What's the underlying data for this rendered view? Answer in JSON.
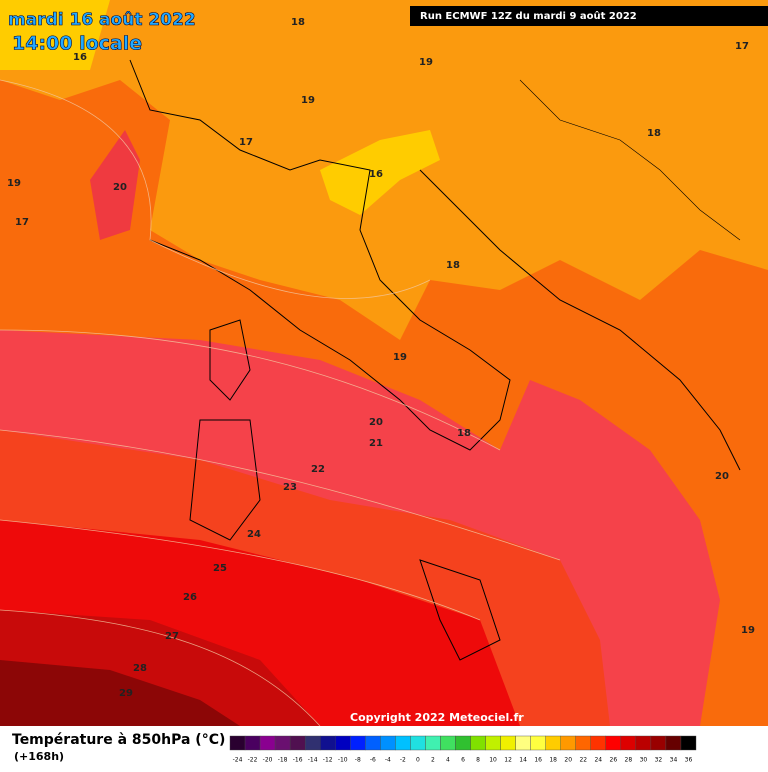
{
  "header": {
    "date": "mardi 16 août 2022",
    "time": "14:00 locale",
    "run": "Run ECMWF 12Z du mardi 9 août 2022"
  },
  "contour_labels": [
    18,
    16,
    19,
    19,
    17,
    18,
    17,
    19,
    20,
    16,
    17,
    18,
    19,
    20,
    21,
    18,
    22,
    23,
    20,
    24,
    25,
    26,
    27,
    28,
    29,
    19
  ],
  "copyright": "Copyright 2022 Meteociel.fr",
  "footer": {
    "title": "Température à 850hPa (°C)",
    "lead": "(+168h)"
  },
  "legend": {
    "ticks": [
      -24,
      -22,
      -20,
      -18,
      -16,
      -14,
      -12,
      -10,
      -8,
      -6,
      -4,
      -2,
      0,
      2,
      4,
      6,
      8,
      10,
      12,
      14,
      16,
      18,
      20,
      22,
      24,
      26,
      28,
      30,
      32,
      34,
      36
    ],
    "colors": [
      "#2a0030",
      "#4a0060",
      "#8a0090",
      "#6a1070",
      "#501050",
      "#303070",
      "#101090",
      "#0000c0",
      "#0020ff",
      "#0060ff",
      "#0090ff",
      "#00c0ff",
      "#20e0e0",
      "#40f0b0",
      "#40e060",
      "#30c030",
      "#80e000",
      "#c0f000",
      "#f0f000",
      "#ffff80",
      "#ffff40",
      "#ffcc00",
      "#ff9900",
      "#ff6600",
      "#ff3300",
      "#ff0000",
      "#dd0000",
      "#bb0000",
      "#990000",
      "#660000",
      "#000000"
    ]
  }
}
